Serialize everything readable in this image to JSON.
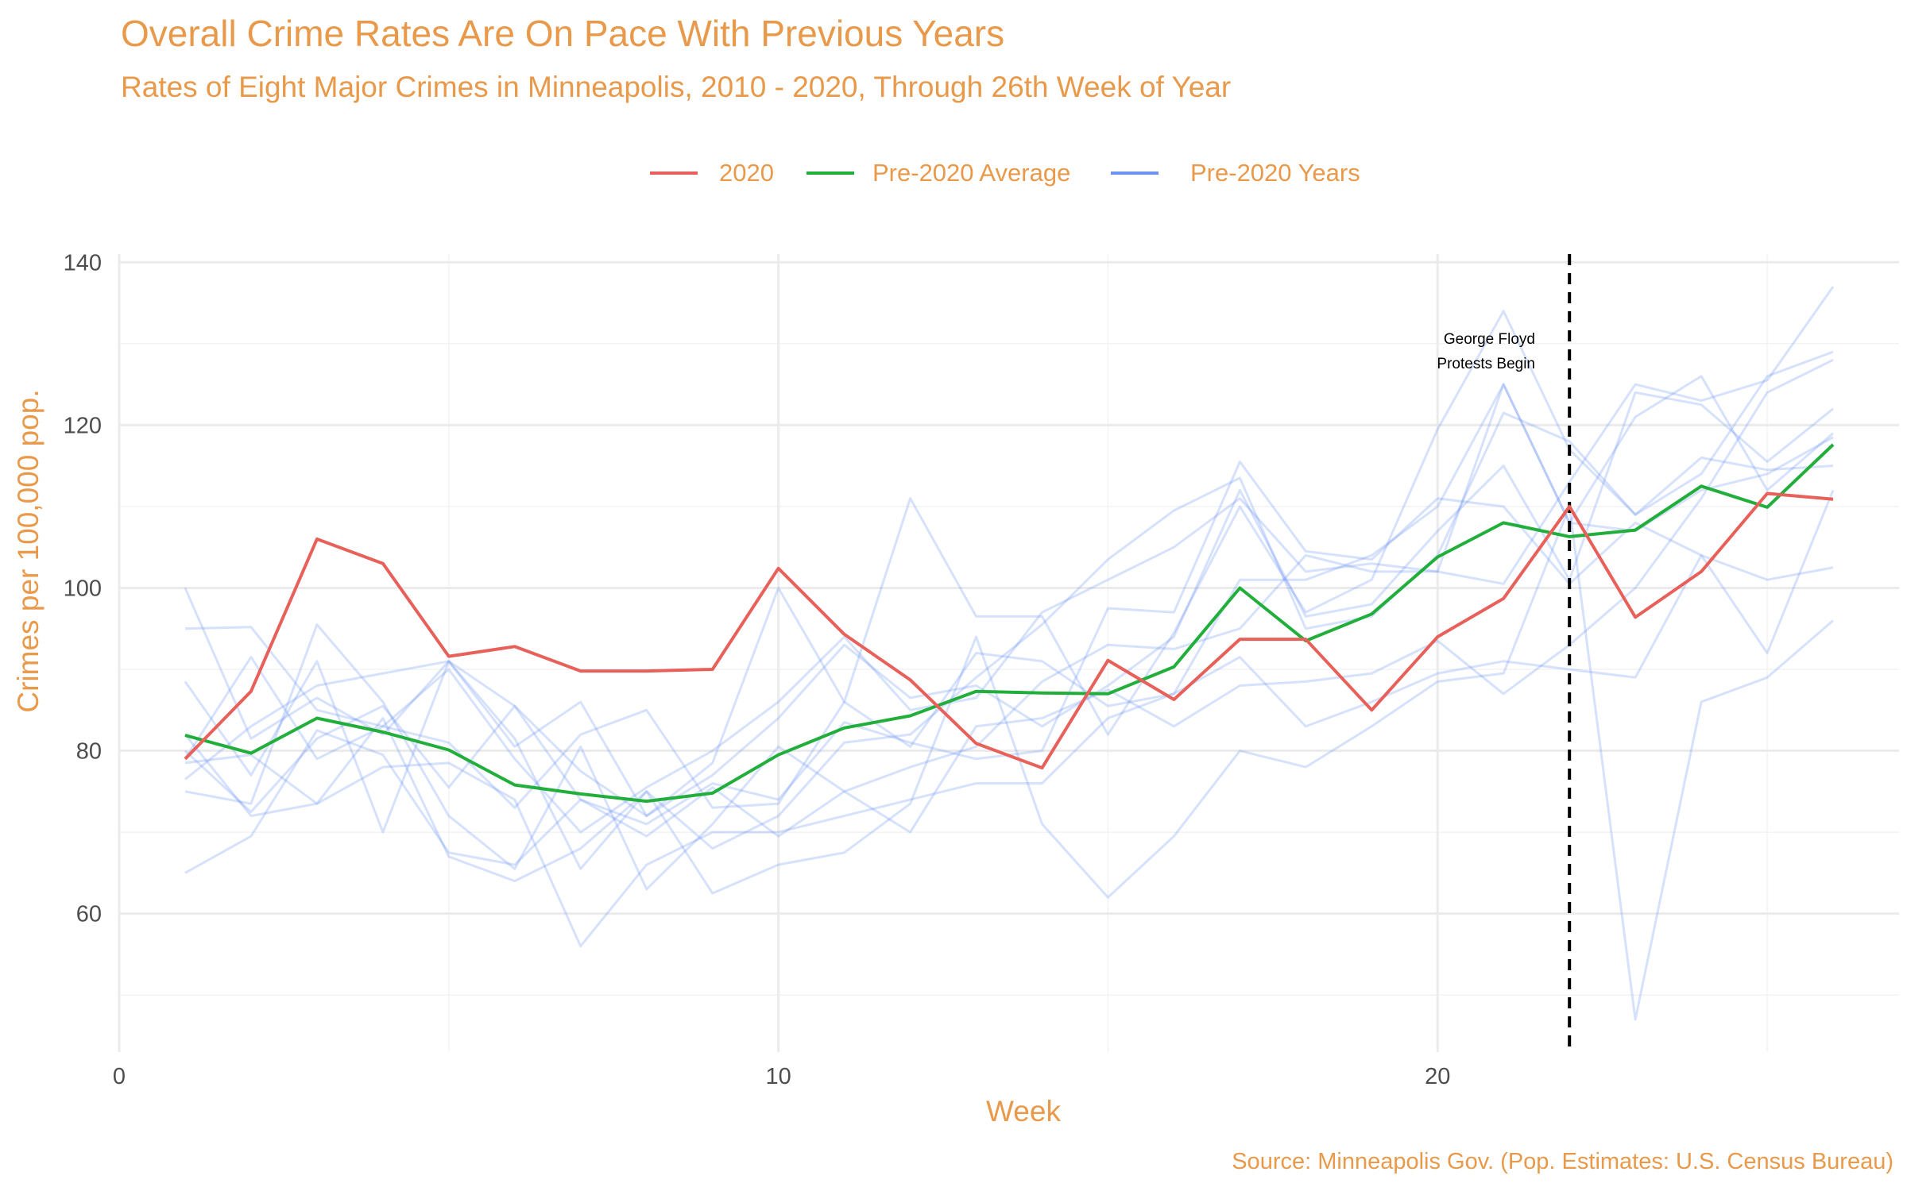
{
  "chart_data": {
    "type": "line",
    "title": "Overall Crime Rates Are On Pace With Previous Years",
    "subtitle": "Rates of Eight Major Crimes in Minneapolis, 2010 - 2020, Through 26th Week of Year",
    "xlabel": "Week",
    "ylabel": "Crimes per 100,000 pop.",
    "caption": "Source: Minneapolis Gov. (Pop. Estimates: U.S. Census Bureau)",
    "xlim": [
      0,
      27
    ],
    "ylim": [
      43,
      141
    ],
    "x_ticks": [
      0,
      10,
      20
    ],
    "y_ticks": [
      60,
      80,
      100,
      120,
      140
    ],
    "grid": true,
    "legend_position": "top",
    "legend": [
      "2020",
      "Pre-2020 Average",
      "Pre-2020 Years"
    ],
    "annotation": {
      "x": 22,
      "line_style": "dashed",
      "label_line1": "George Floyd",
      "label_line2": "Protests Begin"
    },
    "x": [
      1,
      2,
      3,
      4,
      5,
      6,
      7,
      8,
      9,
      10,
      11,
      12,
      13,
      14,
      15,
      16,
      17,
      18,
      19,
      20,
      21,
      22,
      23,
      24,
      25,
      26
    ],
    "series": [
      {
        "name": "2020",
        "color": "#E8605A",
        "values": [
          79,
          87.3,
          106,
          103,
          91.6,
          92.8,
          89.8,
          89.8,
          90,
          102.4,
          94.3,
          88.7,
          80.9,
          77.9,
          91.1,
          86.3,
          93.7,
          93.7,
          85,
          94,
          98.7,
          110,
          96.4,
          102,
          111.6,
          110.9
        ]
      },
      {
        "name": "Pre-2020 Average",
        "color": "#21AE3A",
        "values": [
          81.9,
          79.7,
          84,
          82.3,
          80.1,
          75.8,
          74.7,
          73.8,
          74.8,
          79.5,
          82.8,
          84.3,
          87.3,
          87.1,
          87,
          90.3,
          100,
          93.5,
          96.8,
          103.8,
          108,
          106.3,
          107.1,
          112.5,
          109.9,
          117.6
        ]
      }
    ],
    "background_series": {
      "name": "Pre-2020 Years",
      "color": "#6D93F0",
      "opacity": 0.28,
      "lines": [
        [
          100,
          81.5,
          86.5,
          82,
          91,
          85.5,
          77.5,
          72,
          77,
          84,
          93,
          86.5,
          88,
          83,
          88,
          94,
          112,
          96.5,
          98,
          107,
          115,
          101,
          124,
          122.5,
          115.5,
          122
        ],
        [
          95,
          95.2,
          85,
          83,
          81,
          73,
          82,
          85,
          73,
          73.5,
          86,
          80.5,
          92,
          91,
          85.5,
          87,
          101,
          101,
          104,
          110,
          125,
          108,
          121,
          126,
          112,
          119
        ],
        [
          88.5,
          77,
          91,
          70,
          91,
          80.5,
          86,
          72,
          78.5,
          100,
          86,
          111,
          96.5,
          96.5,
          82,
          94.5,
          110,
          97,
          101,
          119.5,
          134,
          117,
          109,
          116,
          114.5,
          115
        ],
        [
          79,
          91.5,
          79,
          83,
          90,
          79,
          70,
          75.5,
          80,
          86,
          94,
          85,
          86.5,
          97,
          101,
          105,
          111,
          102,
          103,
          102,
          100.5,
          113,
          125,
          123,
          125.5,
          137
        ],
        [
          80,
          72.5,
          81.5,
          85.5,
          75.5,
          85.5,
          74,
          71,
          76,
          74,
          83.5,
          81,
          79,
          80,
          97.5,
          97,
          115.5,
          104.5,
          103.5,
          111,
          110,
          100.5,
          108,
          104,
          101,
          102.5
        ],
        [
          76.5,
          83,
          88,
          89.5,
          91,
          81.5,
          65.5,
          75,
          68,
          72,
          81,
          82,
          89,
          95.5,
          103.5,
          109.5,
          113.5,
          95,
          96.5,
          104,
          121.5,
          118,
          109,
          114,
          126,
          129
        ],
        [
          65,
          69.5,
          82.5,
          79.5,
          67.5,
          66,
          74,
          69.5,
          75.5,
          69.5,
          75,
          78,
          80.5,
          88.5,
          93,
          92.5,
          95,
          104,
          102,
          102,
          125,
          108,
          107,
          112,
          114,
          118.5
        ],
        [
          75,
          73.5,
          95.5,
          86,
          72,
          65.5,
          80.5,
          63,
          71,
          80.5,
          75,
          70,
          83,
          84,
          87.5,
          83,
          88,
          88.5,
          89.5,
          93.5,
          87,
          93,
          100,
          111,
          124,
          128
        ],
        [
          78.5,
          79.5,
          73.5,
          84,
          67,
          64,
          68,
          75,
          62.5,
          66,
          67.5,
          73.5,
          94,
          71,
          62,
          69.5,
          80,
          78,
          83,
          88.5,
          89.5,
          110,
          47,
          86,
          89,
          96
        ],
        [
          82,
          72,
          73.5,
          78,
          78.5,
          74,
          56,
          66,
          70,
          70,
          72,
          74,
          76,
          76,
          84,
          87,
          91.5,
          83,
          86,
          89.5,
          91,
          90,
          89,
          104,
          92,
          112
        ]
      ]
    }
  }
}
